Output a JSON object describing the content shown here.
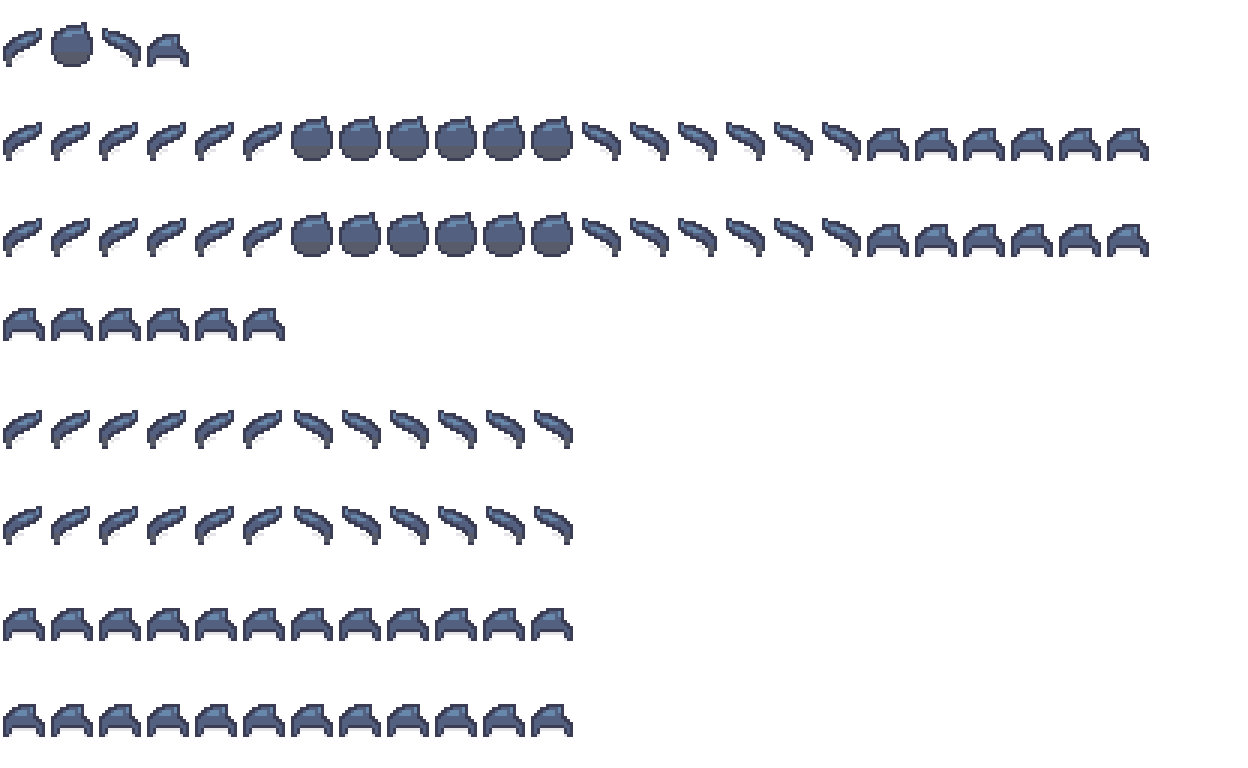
{
  "sheet": {
    "colors": {
      "outline": "#3b3d54",
      "body": "#54607f",
      "highlight": "#6787ab",
      "shadow": "#585c6a",
      "light": "#e3e3e8",
      "background": "#ffffff"
    },
    "rows": [
      [
        "tilt-left",
        "round",
        "tilt-right",
        "arch"
      ],
      [
        "tilt-left",
        "tilt-left",
        "tilt-left",
        "tilt-left",
        "tilt-left",
        "tilt-left",
        "round",
        "round",
        "round",
        "round",
        "round",
        "round",
        "tilt-right",
        "tilt-right",
        "tilt-right",
        "tilt-right",
        "tilt-right",
        "tilt-right",
        "arch",
        "arch",
        "arch",
        "arch",
        "arch",
        "arch"
      ],
      [
        "tilt-left",
        "tilt-left",
        "tilt-left",
        "tilt-left",
        "tilt-left",
        "tilt-left",
        "round",
        "round",
        "round",
        "round",
        "round",
        "round",
        "tilt-right",
        "tilt-right",
        "tilt-right",
        "tilt-right",
        "tilt-right",
        "tilt-right",
        "arch",
        "arch",
        "arch",
        "arch",
        "arch",
        "arch"
      ],
      [
        "arch",
        "arch",
        "arch",
        "arch",
        "arch",
        "arch"
      ],
      [
        "tilt-left",
        "tilt-left",
        "tilt-left",
        "tilt-left",
        "tilt-left",
        "tilt-left",
        "tilt-right",
        "tilt-right",
        "tilt-right",
        "tilt-right",
        "tilt-right",
        "tilt-right"
      ],
      [
        "tilt-left",
        "tilt-left",
        "tilt-left",
        "tilt-left",
        "tilt-left",
        "tilt-left",
        "tilt-right",
        "tilt-right",
        "tilt-right",
        "tilt-right",
        "tilt-right",
        "tilt-right"
      ],
      [
        "arch",
        "arch",
        "arch",
        "arch",
        "arch",
        "arch",
        "arch",
        "arch",
        "arch",
        "arch",
        "arch",
        "arch"
      ],
      [
        "arch",
        "arch",
        "arch",
        "arch",
        "arch",
        "arch",
        "arch",
        "arch",
        "arch",
        "arch",
        "arch",
        "arch"
      ]
    ]
  }
}
